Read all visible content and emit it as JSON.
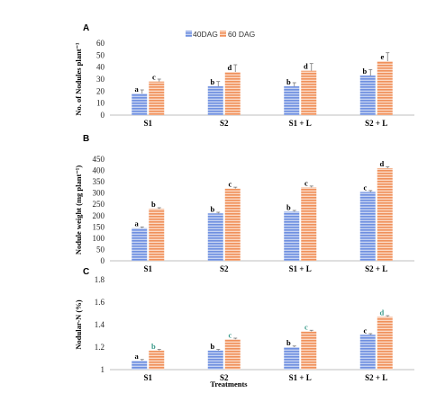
{
  "legend": {
    "items": [
      "40DAG",
      "60 DAG"
    ],
    "colors": [
      "#6e8fe0",
      "#f0905a"
    ]
  },
  "x_axis_title": "Treatments",
  "chart_data": [
    {
      "type": "bar",
      "panel": "A",
      "categories": [
        "S1",
        "S2",
        "S1 + L",
        "S2 + L"
      ],
      "ylabel": "No. of Nodules plant⁻¹",
      "ylim": [
        0,
        60
      ],
      "yticks": [
        0,
        10,
        20,
        30,
        40,
        50,
        60
      ],
      "series": [
        {
          "name": "40DAG",
          "values": [
            18,
            24,
            24,
            33
          ],
          "errors": [
            3,
            4,
            3,
            5
          ]
        },
        {
          "name": "60 DAG",
          "values": [
            28,
            36,
            37,
            45
          ],
          "errors": [
            2,
            6,
            6,
            7
          ]
        }
      ],
      "labels": [
        [
          "a",
          "b",
          "b",
          "b"
        ],
        [
          "c",
          "d",
          "d",
          "e"
        ]
      ]
    },
    {
      "type": "bar",
      "panel": "B",
      "categories": [
        "S1",
        "S2",
        "S1 + L",
        "S2 + L"
      ],
      "ylabel": "Nodule weight (mg plant⁻¹)",
      "ylim": [
        0,
        450
      ],
      "yticks": [
        0,
        50,
        100,
        150,
        200,
        250,
        300,
        350,
        400,
        450
      ],
      "series": [
        {
          "name": "40DAG",
          "values": [
            145,
            210,
            218,
            305
          ],
          "errors": [
            5,
            5,
            5,
            6
          ]
        },
        {
          "name": "60 DAG",
          "values": [
            230,
            320,
            325,
            410
          ],
          "errors": [
            5,
            6,
            6,
            6
          ]
        }
      ],
      "labels": [
        [
          "a",
          "b",
          "b",
          "c"
        ],
        [
          "b",
          "c",
          "c",
          "d"
        ]
      ]
    },
    {
      "type": "bar",
      "panel": "C",
      "categories": [
        "S1",
        "S2",
        "S1 + L",
        "S2 + L"
      ],
      "ylabel": "Nodular-N (%)",
      "ylim": [
        1,
        1.8
      ],
      "yticks": [
        1,
        1.2,
        1.4,
        1.6,
        1.8
      ],
      "ytick_labels": [
        "1",
        "1.2",
        "1.4",
        "1.6",
        "1.8"
      ],
      "series": [
        {
          "name": "40DAG",
          "values": [
            1.08,
            1.17,
            1.2,
            1.31
          ],
          "errors": [
            0.01,
            0.01,
            0.01,
            0.01
          ]
        },
        {
          "name": "60 DAG",
          "values": [
            1.17,
            1.27,
            1.34,
            1.47
          ],
          "errors": [
            0.01,
            0.01,
            0.01,
            0.01
          ]
        }
      ],
      "labels": [
        [
          "a",
          "b",
          "b",
          "c"
        ],
        [
          "b",
          "c",
          "c",
          "d"
        ]
      ],
      "label_colors": [
        "#000000",
        "#3a9a8a"
      ]
    }
  ]
}
